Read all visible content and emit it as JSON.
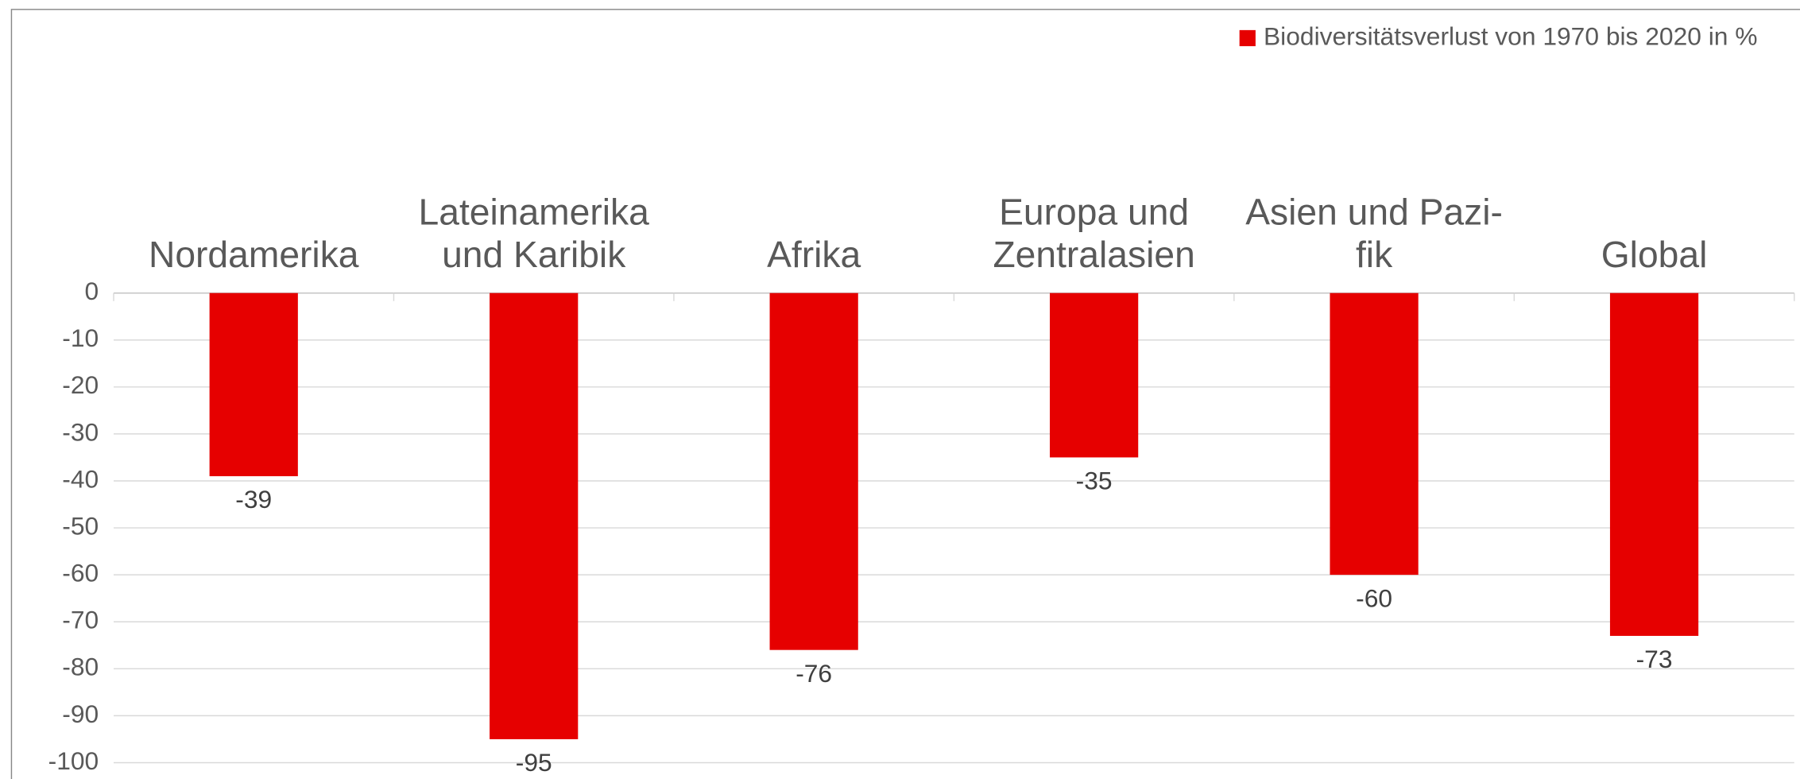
{
  "chart_data": {
    "type": "bar",
    "categories": [
      [
        "Nordamerika"
      ],
      [
        "Lateinamerika",
        "und Karibik"
      ],
      [
        "Afrika"
      ],
      [
        "Europa und",
        "Zentralasien"
      ],
      [
        "Asien und Pazi-",
        "fik"
      ],
      [
        "Global"
      ]
    ],
    "series": [
      {
        "name": "Biodiversitätsverlust von 1970 bis 2020 in %",
        "color": "#e60000",
        "values": [
          -39,
          -95,
          -76,
          -35,
          -60,
          -73
        ]
      }
    ],
    "ylim": [
      -100,
      0
    ],
    "yticks": [
      0,
      -10,
      -20,
      -30,
      -40,
      -50,
      -60,
      -70,
      -80,
      -90,
      -100
    ],
    "grid": true,
    "legend": "top-right"
  }
}
